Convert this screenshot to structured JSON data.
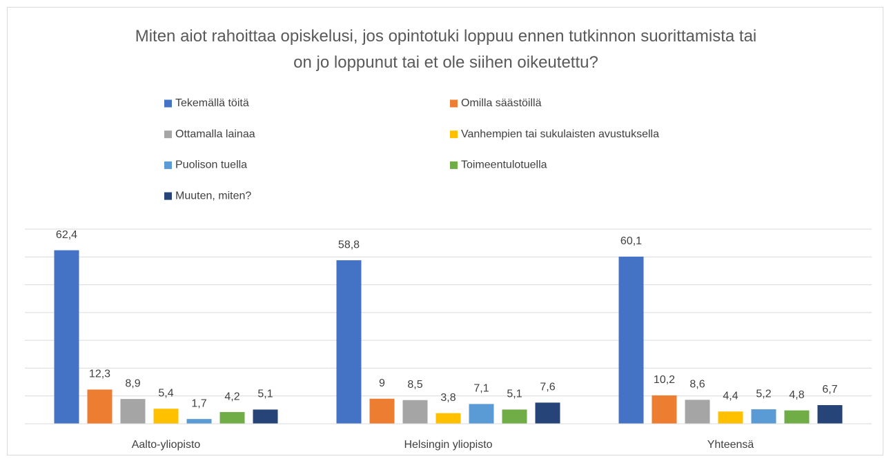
{
  "chart_data": {
    "type": "bar",
    "title": "Miten aiot rahoittaa opiskelusi, jos opintotuki loppuu ennen tutkinnon suorittamista tai on jo loppunut tai et ole siihen oikeutettu?",
    "categories": [
      "Aalto-yliopisto",
      "Helsingin yliopisto",
      "Yhteensä"
    ],
    "series": [
      {
        "name": "Tekemällä töitä",
        "color": "#4472c4",
        "values": [
          62.4,
          58.8,
          60.1
        ],
        "value_labels": [
          "62,4",
          "58,8",
          "60,1"
        ]
      },
      {
        "name": "Omilla säästöillä",
        "color": "#ed7d31",
        "values": [
          12.3,
          9,
          10.2
        ],
        "value_labels": [
          "12,3",
          "9",
          "10,2"
        ]
      },
      {
        "name": "Ottamalla lainaa",
        "color": "#a5a5a5",
        "values": [
          8.9,
          8.5,
          8.6
        ],
        "value_labels": [
          "8,9",
          "8,5",
          "8,6"
        ]
      },
      {
        "name": "Vanhempien tai sukulaisten avustuksella",
        "color": "#ffc000",
        "values": [
          5.4,
          3.8,
          4.4
        ],
        "value_labels": [
          "5,4",
          "3,8",
          "4,4"
        ]
      },
      {
        "name": "Puolison tuella",
        "color": "#5b9bd5",
        "values": [
          1.7,
          7.1,
          5.2
        ],
        "value_labels": [
          "1,7",
          "7,1",
          "5,2"
        ]
      },
      {
        "name": "Toimeentulotuella",
        "color": "#70ad47",
        "values": [
          4.2,
          5.1,
          4.8
        ],
        "value_labels": [
          "4,2",
          "5,1",
          "4,8"
        ]
      },
      {
        "name": "Muuten, miten?",
        "color": "#264478",
        "values": [
          5.1,
          7.6,
          6.7
        ],
        "value_labels": [
          "5,1",
          "7,6",
          "6,7"
        ]
      }
    ],
    "ylim": [
      0,
      70
    ],
    "yticks": [
      0,
      10,
      20,
      30,
      40,
      50,
      60,
      70
    ],
    "grid": true,
    "legend": "top"
  }
}
